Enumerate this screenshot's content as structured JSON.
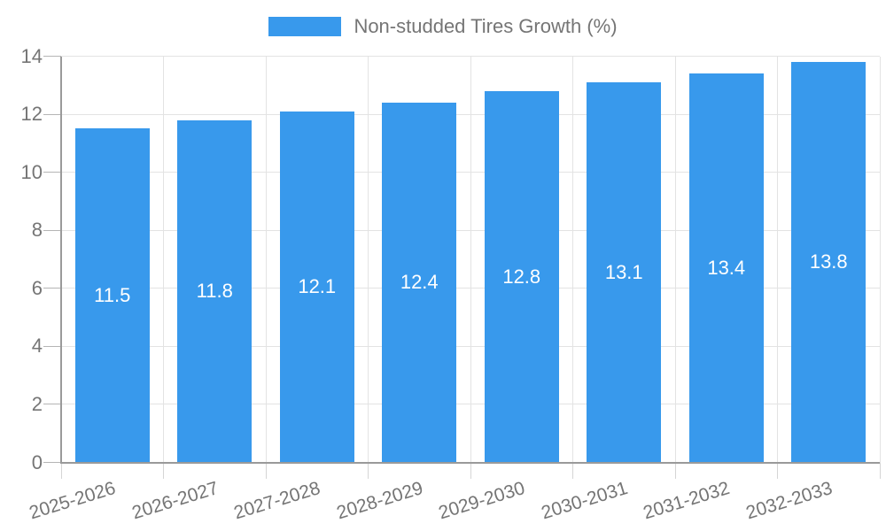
{
  "page": {
    "background": "#ffffff"
  },
  "legend": {
    "position": "top",
    "label": "Non-studded Tires Growth (%)"
  },
  "colors": {
    "bar": "#3899ec",
    "grid": "#e3e3e3",
    "axis": "#9a9a9a",
    "y_tick": "#b5b5b5",
    "x_tick": "#d5d5d5",
    "tick_label": "#757575",
    "value_label": "#ffffff",
    "legend_label": "#757575"
  },
  "chart_data": {
    "type": "bar",
    "title": "",
    "categories": [
      "2025-2026",
      "2026-2027",
      "2027-2028",
      "2028-2029",
      "2029-2030",
      "2030-2031",
      "2031-2032",
      "2032-2033"
    ],
    "series": [
      {
        "name": "Non-studded Tires Growth (%)",
        "values": [
          11.5,
          11.8,
          12.1,
          12.4,
          12.8,
          13.1,
          13.4,
          13.8
        ]
      }
    ],
    "value_labels": [
      "11.5",
      "11.8",
      "12.1",
      "12.4",
      "12.8",
      "13.1",
      "13.4",
      "13.8"
    ],
    "xlabel": "",
    "ylabel": "",
    "ylim": [
      0,
      14
    ],
    "yticks": [
      0,
      2,
      4,
      6,
      8,
      10,
      12,
      14
    ],
    "grid": true,
    "legend_position": "top",
    "x_label_rotation_deg": -17
  }
}
